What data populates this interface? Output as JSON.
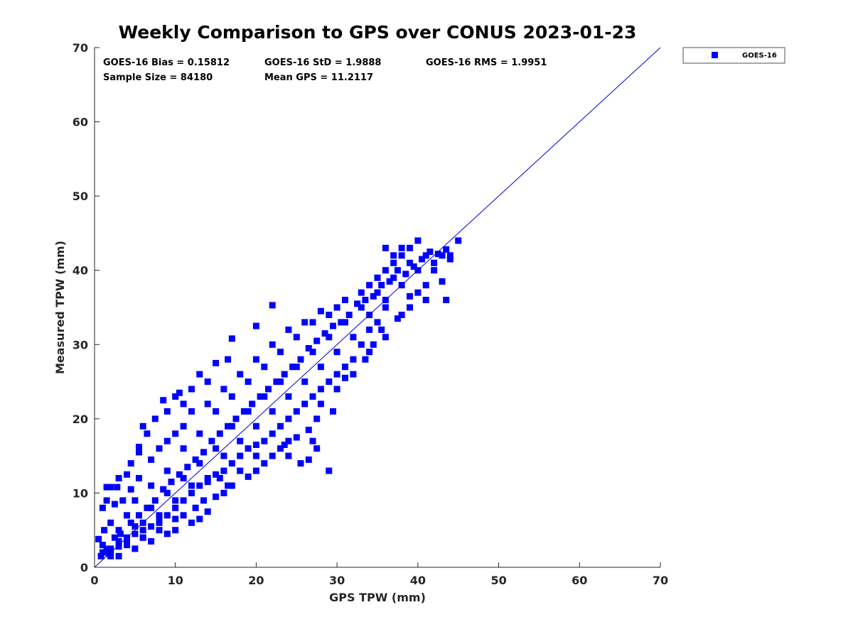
{
  "chart_data": {
    "type": "scatter",
    "title": "Weekly Comparison to GPS over CONUS 2023-01-23",
    "xlabel": "GPS TPW (mm)",
    "ylabel": "Measured TPW (mm)",
    "xlim": [
      0,
      70
    ],
    "ylim": [
      0,
      70
    ],
    "xticks": [
      0,
      10,
      20,
      30,
      40,
      50,
      60,
      70
    ],
    "yticks": [
      0,
      10,
      20,
      30,
      40,
      50,
      60,
      70
    ],
    "grid": false,
    "legend": {
      "placement": "outside-top-right",
      "entries": [
        "GOES-16"
      ]
    },
    "reference_line": {
      "name": "1:1 line",
      "from": [
        0,
        0
      ],
      "to": [
        70,
        70
      ],
      "color": "#0000cc"
    },
    "stats": [
      "GOES-16 Bias = 0.15812",
      "GOES-16 StD = 1.9888",
      "GOES-16 RMS = 1.9951",
      "Sample Size = 84180",
      "Mean GPS = 11.2117"
    ],
    "series": [
      {
        "name": "GOES-16",
        "color": "#0000ff",
        "marker": "square",
        "points": [
          [
            0.5,
            3.8
          ],
          [
            1,
            3
          ],
          [
            1.5,
            2.5
          ],
          [
            2,
            2
          ],
          [
            2.5,
            4
          ],
          [
            3,
            3.5
          ],
          [
            1.2,
            5
          ],
          [
            2,
            6
          ],
          [
            3,
            5
          ],
          [
            4,
            4
          ],
          [
            5,
            5.5
          ],
          [
            4,
            7
          ],
          [
            6,
            6
          ],
          [
            7,
            8
          ],
          [
            5,
            9
          ],
          [
            6,
            4
          ],
          [
            8,
            7
          ],
          [
            9,
            10
          ],
          [
            7,
            11
          ],
          [
            8,
            6
          ],
          [
            10,
            9
          ],
          [
            11,
            12
          ],
          [
            9,
            13
          ],
          [
            12,
            11
          ],
          [
            13,
            14
          ],
          [
            11,
            16
          ],
          [
            14,
            12
          ],
          [
            15,
            16
          ],
          [
            13,
            18
          ],
          [
            16,
            15
          ],
          [
            17,
            19
          ],
          [
            15,
            21
          ],
          [
            18,
            17
          ],
          [
            19,
            21
          ],
          [
            17,
            23
          ],
          [
            20,
            19
          ],
          [
            21,
            23
          ],
          [
            19,
            25
          ],
          [
            22,
            21
          ],
          [
            23,
            25
          ],
          [
            21,
            27
          ],
          [
            24,
            23
          ],
          [
            25,
            27
          ],
          [
            23,
            29
          ],
          [
            26,
            25
          ],
          [
            27,
            29
          ],
          [
            25,
            31
          ],
          [
            28,
            27
          ],
          [
            29,
            31
          ],
          [
            27,
            33
          ],
          [
            30,
            29
          ],
          [
            31,
            33
          ],
          [
            29,
            34
          ],
          [
            32,
            31
          ],
          [
            33,
            35
          ],
          [
            34,
            34
          ],
          [
            35,
            37
          ],
          [
            36,
            36
          ],
          [
            37,
            39
          ],
          [
            38,
            38
          ],
          [
            39,
            41
          ],
          [
            40,
            40
          ],
          [
            41,
            42
          ],
          [
            42,
            41
          ],
          [
            43,
            42
          ],
          [
            44,
            42
          ],
          [
            45,
            44
          ],
          [
            40,
            44
          ],
          [
            36,
            43
          ],
          [
            37,
            42
          ],
          [
            38,
            43
          ],
          [
            43,
            38.5
          ],
          [
            43.5,
            36
          ],
          [
            41,
            36
          ],
          [
            39,
            35
          ],
          [
            38,
            34
          ],
          [
            37.5,
            33.5
          ],
          [
            36,
            31
          ],
          [
            35.5,
            32
          ],
          [
            34.5,
            30
          ],
          [
            33.5,
            28
          ],
          [
            34,
            29
          ],
          [
            32,
            26
          ],
          [
            31,
            25.5
          ],
          [
            30,
            24
          ],
          [
            29.5,
            21
          ],
          [
            28,
            22
          ],
          [
            27.5,
            20
          ],
          [
            26.5,
            18.5
          ],
          [
            25,
            17.5
          ],
          [
            24,
            17
          ],
          [
            23.5,
            16.5
          ],
          [
            22,
            15
          ],
          [
            21,
            14
          ],
          [
            20,
            13
          ],
          [
            19,
            12.2
          ],
          [
            17,
            11
          ],
          [
            16,
            10
          ],
          [
            15,
            9.5
          ],
          [
            14,
            7.5
          ],
          [
            13,
            6.5
          ],
          [
            12,
            6
          ],
          [
            10,
            5
          ],
          [
            9,
            4.5
          ],
          [
            7,
            3.5
          ],
          [
            5,
            2.5
          ],
          [
            3,
            1.5
          ],
          [
            2,
            1.5
          ],
          [
            29,
            13
          ],
          [
            27,
            17
          ],
          [
            27.5,
            16
          ],
          [
            26.5,
            14.5
          ],
          [
            25.5,
            14
          ],
          [
            24,
            15
          ],
          [
            23,
            16
          ],
          [
            20,
            15
          ],
          [
            18,
            13
          ],
          [
            16.5,
            11
          ],
          [
            15.5,
            12
          ],
          [
            13.5,
            9
          ],
          [
            12.5,
            8
          ],
          [
            11,
            7
          ],
          [
            10,
            6.5
          ],
          [
            8,
            5
          ],
          [
            6,
            4
          ],
          [
            4,
            3
          ],
          [
            22,
            35.3
          ],
          [
            20,
            32.5
          ],
          [
            17,
            30.8
          ],
          [
            16.5,
            28
          ],
          [
            15,
            27.5
          ],
          [
            14,
            25
          ],
          [
            13,
            26
          ],
          [
            12,
            24
          ],
          [
            11,
            22
          ],
          [
            10,
            23
          ],
          [
            10.5,
            23.5
          ],
          [
            9,
            21
          ],
          [
            8.5,
            22.5
          ],
          [
            7.5,
            20
          ],
          [
            6.5,
            18
          ],
          [
            6,
            19
          ],
          [
            5.5,
            16.2
          ],
          [
            5.5,
            15.5
          ],
          [
            4.5,
            14
          ],
          [
            4,
            12.5
          ],
          [
            3,
            12
          ],
          [
            2,
            10.8
          ],
          [
            1.5,
            10.8
          ],
          [
            2.8,
            10.8
          ],
          [
            1.5,
            9
          ],
          [
            1,
            8
          ],
          [
            2.5,
            8.5
          ],
          [
            3.5,
            9
          ],
          [
            4.5,
            10.5
          ],
          [
            5.5,
            12
          ],
          [
            7,
            14.5
          ],
          [
            8,
            16
          ],
          [
            9,
            17
          ],
          [
            10,
            18
          ],
          [
            11,
            19
          ],
          [
            12,
            21
          ],
          [
            14,
            22
          ],
          [
            16,
            24
          ],
          [
            18,
            26
          ],
          [
            20,
            28
          ],
          [
            22,
            30
          ],
          [
            24,
            32
          ],
          [
            26,
            33
          ],
          [
            28,
            34.5
          ],
          [
            30,
            35
          ],
          [
            31,
            36
          ],
          [
            33,
            37
          ],
          [
            34,
            38
          ],
          [
            35,
            39
          ],
          [
            36,
            40
          ],
          [
            37,
            41
          ],
          [
            38,
            42
          ],
          [
            39,
            43
          ],
          [
            44,
            41.5
          ],
          [
            42,
            40
          ],
          [
            41,
            38
          ],
          [
            40,
            37
          ],
          [
            39,
            36.5
          ],
          [
            36,
            35
          ],
          [
            35,
            33
          ],
          [
            34,
            32
          ],
          [
            33,
            30
          ],
          [
            32,
            28
          ],
          [
            31,
            27
          ],
          [
            30,
            26
          ],
          [
            29,
            25
          ],
          [
            28,
            24
          ],
          [
            27,
            23
          ],
          [
            26,
            22
          ],
          [
            25,
            21
          ],
          [
            24,
            20
          ],
          [
            23,
            19
          ],
          [
            22,
            18
          ],
          [
            21,
            17
          ],
          [
            20,
            16.5
          ],
          [
            19,
            16
          ],
          [
            18,
            15
          ],
          [
            17,
            14
          ],
          [
            16,
            13
          ],
          [
            15,
            12.5
          ],
          [
            14,
            11.5
          ],
          [
            13,
            11
          ],
          [
            12,
            10
          ],
          [
            11,
            9
          ],
          [
            10,
            8
          ],
          [
            9,
            7
          ],
          [
            8,
            6.5
          ],
          [
            7,
            5.5
          ],
          [
            6,
            5
          ],
          [
            5,
            4.5
          ],
          [
            4,
            3.5
          ],
          [
            3,
            2.8
          ],
          [
            2,
            2.5
          ],
          [
            1,
            2
          ],
          [
            0.8,
            1.5
          ],
          [
            1.8,
            1.8
          ],
          [
            3.2,
            4.5
          ],
          [
            4.5,
            6
          ],
          [
            5.5,
            7
          ],
          [
            6.5,
            8
          ],
          [
            7.5,
            9
          ],
          [
            8.5,
            10.5
          ],
          [
            9.5,
            11.5
          ],
          [
            10.5,
            12.5
          ],
          [
            11.5,
            13.5
          ],
          [
            12.5,
            14.5
          ],
          [
            13.5,
            15.5
          ],
          [
            14.5,
            17
          ],
          [
            15.5,
            18
          ],
          [
            16.5,
            19
          ],
          [
            17.5,
            20
          ],
          [
            18.5,
            21
          ],
          [
            19.5,
            22
          ],
          [
            20.5,
            23
          ],
          [
            21.5,
            24
          ],
          [
            22.5,
            25
          ],
          [
            23.5,
            26
          ],
          [
            24.5,
            27
          ],
          [
            25.5,
            28
          ],
          [
            26.5,
            29.5
          ],
          [
            27.5,
            30.5
          ],
          [
            28.5,
            31.5
          ],
          [
            29.5,
            32.5
          ],
          [
            30.5,
            33
          ],
          [
            31.5,
            34
          ],
          [
            32.5,
            35.5
          ],
          [
            33.5,
            36
          ],
          [
            34.5,
            36.5
          ],
          [
            35.5,
            38
          ],
          [
            36.5,
            38.5
          ],
          [
            37.5,
            40
          ],
          [
            38.5,
            39.5
          ],
          [
            39.5,
            40.5
          ],
          [
            40.5,
            41.5
          ],
          [
            41.5,
            42.5
          ],
          [
            42.5,
            42.2
          ],
          [
            43.5,
            42.8
          ]
        ]
      }
    ]
  }
}
